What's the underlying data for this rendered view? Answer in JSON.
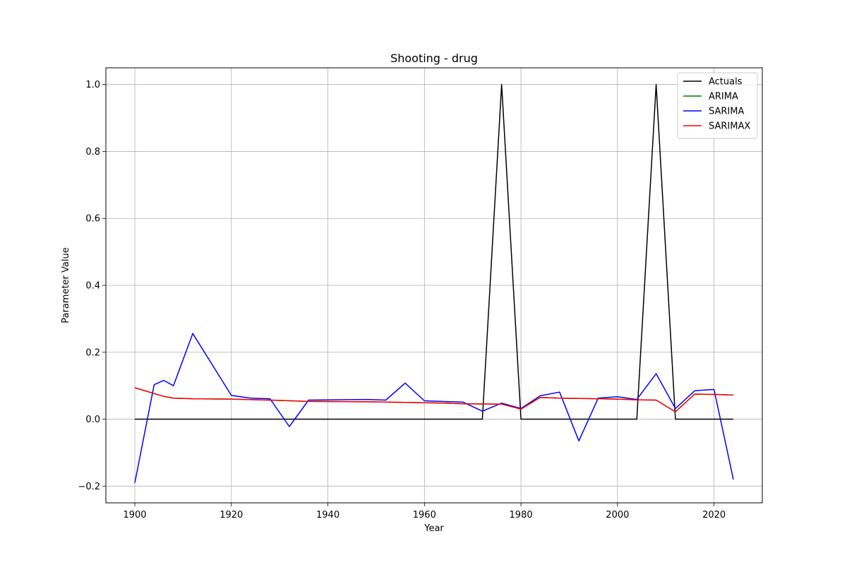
{
  "chart_data": {
    "type": "line",
    "title": "Shooting - drug",
    "xlabel": "Year",
    "ylabel": "Parameter Value",
    "xlim": [
      1894,
      2030
    ],
    "ylim": [
      -0.25,
      1.05
    ],
    "xticks": [
      1900,
      1920,
      1940,
      1960,
      1980,
      2000,
      2020
    ],
    "yticks": [
      -0.2,
      0.0,
      0.2,
      0.4,
      0.6,
      0.8,
      1.0
    ],
    "xtick_labels": [
      "1900",
      "1920",
      "1940",
      "1960",
      "1980",
      "2000",
      "2020"
    ],
    "ytick_labels": [
      "−0.2",
      "0.0",
      "0.2",
      "0.4",
      "0.6",
      "0.8",
      "1.0"
    ],
    "grid": true,
    "legend_position": "top-right",
    "series": [
      {
        "name": "Actuals",
        "color": "#000000",
        "x": [
          1900,
          1972,
          1976,
          1980,
          2004,
          2008,
          2012,
          2024
        ],
        "y": [
          0.0,
          0.0,
          1.0,
          0.0,
          0.0,
          1.0,
          0.0,
          0.0
        ]
      },
      {
        "name": "ARIMA",
        "color": "#008000",
        "x": [
          1900,
          1906,
          1908,
          1912,
          1920,
          1928,
          1936,
          1948,
          1956,
          1964,
          1968,
          1976,
          1980,
          1984,
          1988,
          1996,
          2000,
          2004,
          2008,
          2012,
          2016,
          2020,
          2024
        ],
        "y": [
          0.094,
          0.068,
          0.063,
          0.061,
          0.06,
          0.057,
          0.053,
          0.052,
          0.05,
          0.048,
          0.046,
          0.045,
          0.03,
          0.065,
          0.063,
          0.061,
          0.06,
          0.058,
          0.057,
          0.022,
          0.075,
          0.074,
          0.072
        ]
      },
      {
        "name": "SARIMA",
        "color": "#0000ff",
        "x": [
          1900,
          1904,
          1906,
          1908,
          1912,
          1920,
          1924,
          1928,
          1932,
          1936,
          1948,
          1952,
          1956,
          1960,
          1968,
          1972,
          1976,
          1980,
          1984,
          1988,
          1992,
          1996,
          2000,
          2004,
          2008,
          2012,
          2016,
          2020,
          2024
        ],
        "y": [
          -0.19,
          0.103,
          0.116,
          0.1,
          0.256,
          0.071,
          0.063,
          0.061,
          -0.022,
          0.057,
          0.059,
          0.057,
          0.108,
          0.055,
          0.051,
          0.024,
          0.048,
          0.032,
          0.07,
          0.081,
          -0.065,
          0.063,
          0.067,
          0.059,
          0.136,
          0.032,
          0.085,
          0.089,
          -0.18
        ]
      },
      {
        "name": "SARIMAX",
        "color": "#ff0000",
        "x": [
          1900,
          1906,
          1908,
          1912,
          1920,
          1928,
          1936,
          1948,
          1956,
          1964,
          1968,
          1976,
          1980,
          1984,
          1988,
          1996,
          2000,
          2004,
          2008,
          2012,
          2016,
          2020,
          2024
        ],
        "y": [
          0.094,
          0.068,
          0.063,
          0.061,
          0.06,
          0.057,
          0.053,
          0.052,
          0.05,
          0.048,
          0.046,
          0.045,
          0.03,
          0.065,
          0.063,
          0.061,
          0.06,
          0.058,
          0.057,
          0.022,
          0.075,
          0.074,
          0.072
        ]
      }
    ]
  }
}
